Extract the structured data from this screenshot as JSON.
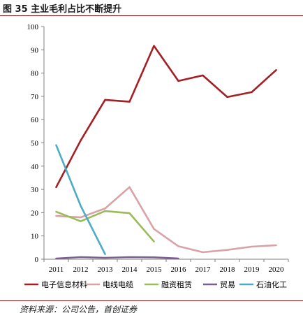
{
  "header": {
    "title": "图 35 主业毛利占比不断提升"
  },
  "footer": {
    "source": "资料来源：公司公告，首创证券"
  },
  "chart_data": {
    "type": "line",
    "title": "",
    "xlabel": "",
    "ylabel": "",
    "x": [
      "2011",
      "2012",
      "2013",
      "2014",
      "2015",
      "2016",
      "2017",
      "2018",
      "2019",
      "2020"
    ],
    "ylim": [
      0,
      100
    ],
    "yticks": [
      0,
      10,
      20,
      30,
      40,
      50,
      60,
      70,
      80,
      90,
      100
    ],
    "grid": false,
    "legend_position": "bottom",
    "series": [
      {
        "name": "电子信息材料",
        "color": "#a31f24",
        "values": [
          31,
          51,
          68.5,
          67.7,
          91.7,
          76.6,
          79,
          69.7,
          71.8,
          81.3
        ]
      },
      {
        "name": "电线电缆",
        "color": "#d9a3a6",
        "values": [
          18.6,
          18,
          21.8,
          31,
          13,
          5.6,
          3,
          4,
          5.4,
          6
        ]
      },
      {
        "name": "融资租赁",
        "color": "#9bbb59",
        "values": [
          20.4,
          16.3,
          20.7,
          19.8,
          7.6,
          null,
          null,
          null,
          null,
          null
        ]
      },
      {
        "name": "贸易",
        "color": "#7d5f8f",
        "values": [
          0.3,
          0.9,
          0.6,
          0.9,
          0.8,
          0.3,
          null,
          null,
          null,
          null
        ]
      },
      {
        "name": "石油化工",
        "color": "#4bacc6",
        "values": [
          49,
          23,
          2.2,
          null,
          null,
          null,
          null,
          null,
          null,
          null
        ]
      }
    ]
  }
}
